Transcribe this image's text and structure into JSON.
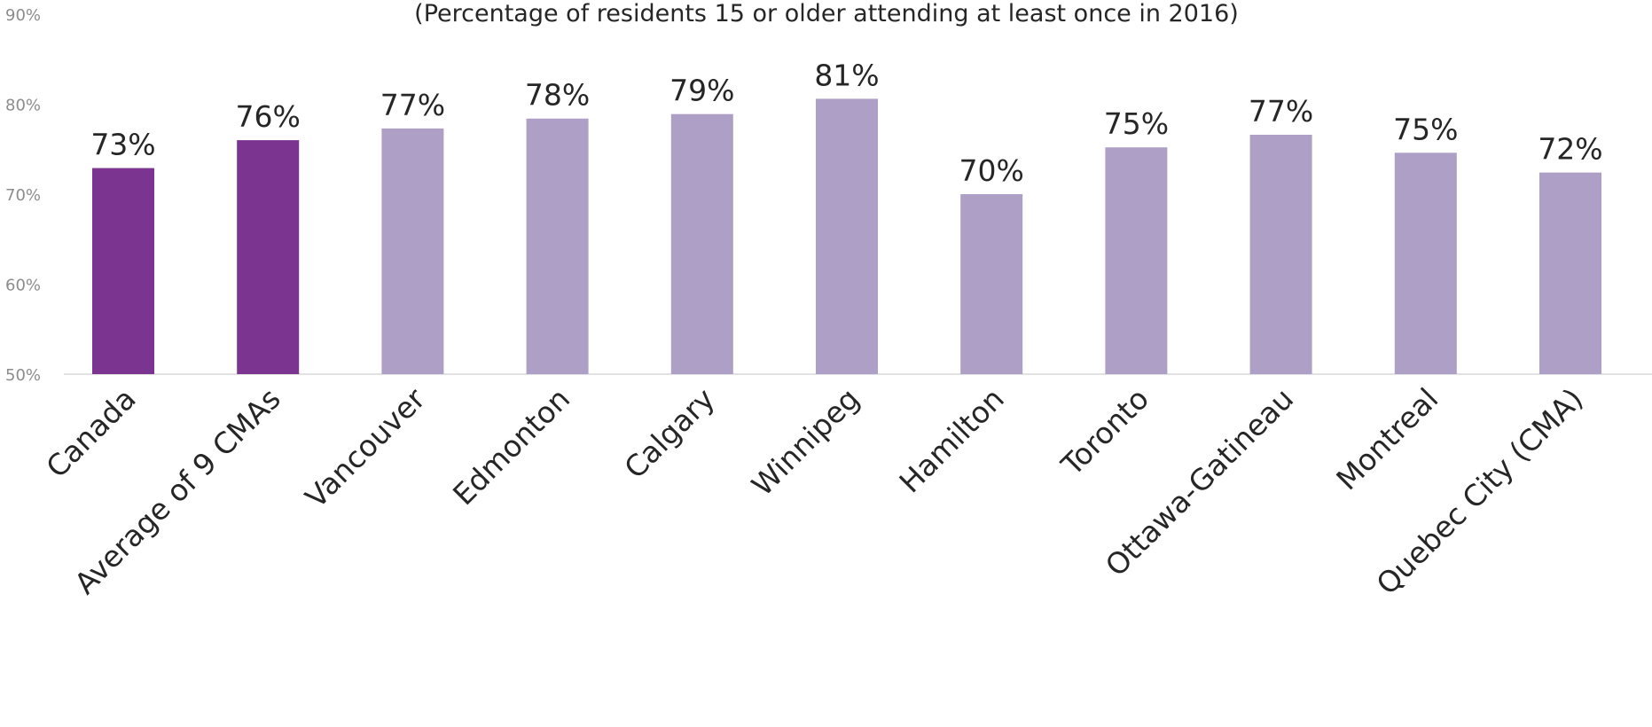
{
  "chart_data": {
    "type": "bar",
    "title": "",
    "subtitle": "(Percentage of residents 15 or older attending at least once in 2016)",
    "xlabel": "",
    "ylabel": "",
    "ylim": [
      50,
      90
    ],
    "yticks": [
      50,
      60,
      70,
      80,
      90
    ],
    "ytick_labels": [
      "50%",
      "60%",
      "70%",
      "80%",
      "90%"
    ],
    "grid": false,
    "legend": "none",
    "categories": [
      "Canada",
      "Average of 9 CMAs",
      "Vancouver",
      "Edmonton",
      "Calgary",
      "Winnipeg",
      "Hamilton",
      "Toronto",
      "Ottawa-Gatineau",
      "Montreal",
      "Quebec City (CMA)"
    ],
    "values": [
      72.9,
      76.0,
      77.3,
      78.4,
      78.9,
      80.6,
      70.0,
      75.2,
      76.6,
      74.6,
      72.4
    ],
    "data_labels": [
      "73%",
      "76%",
      "77%",
      "78%",
      "79%",
      "81%",
      "70%",
      "75%",
      "77%",
      "75%",
      "72%"
    ],
    "colors": {
      "highlight": "#7b3591",
      "default": "#ae9fc7",
      "axis": "#d9d9d9"
    },
    "highlighted": [
      true,
      true,
      false,
      false,
      false,
      false,
      false,
      false,
      false,
      false,
      false
    ]
  }
}
